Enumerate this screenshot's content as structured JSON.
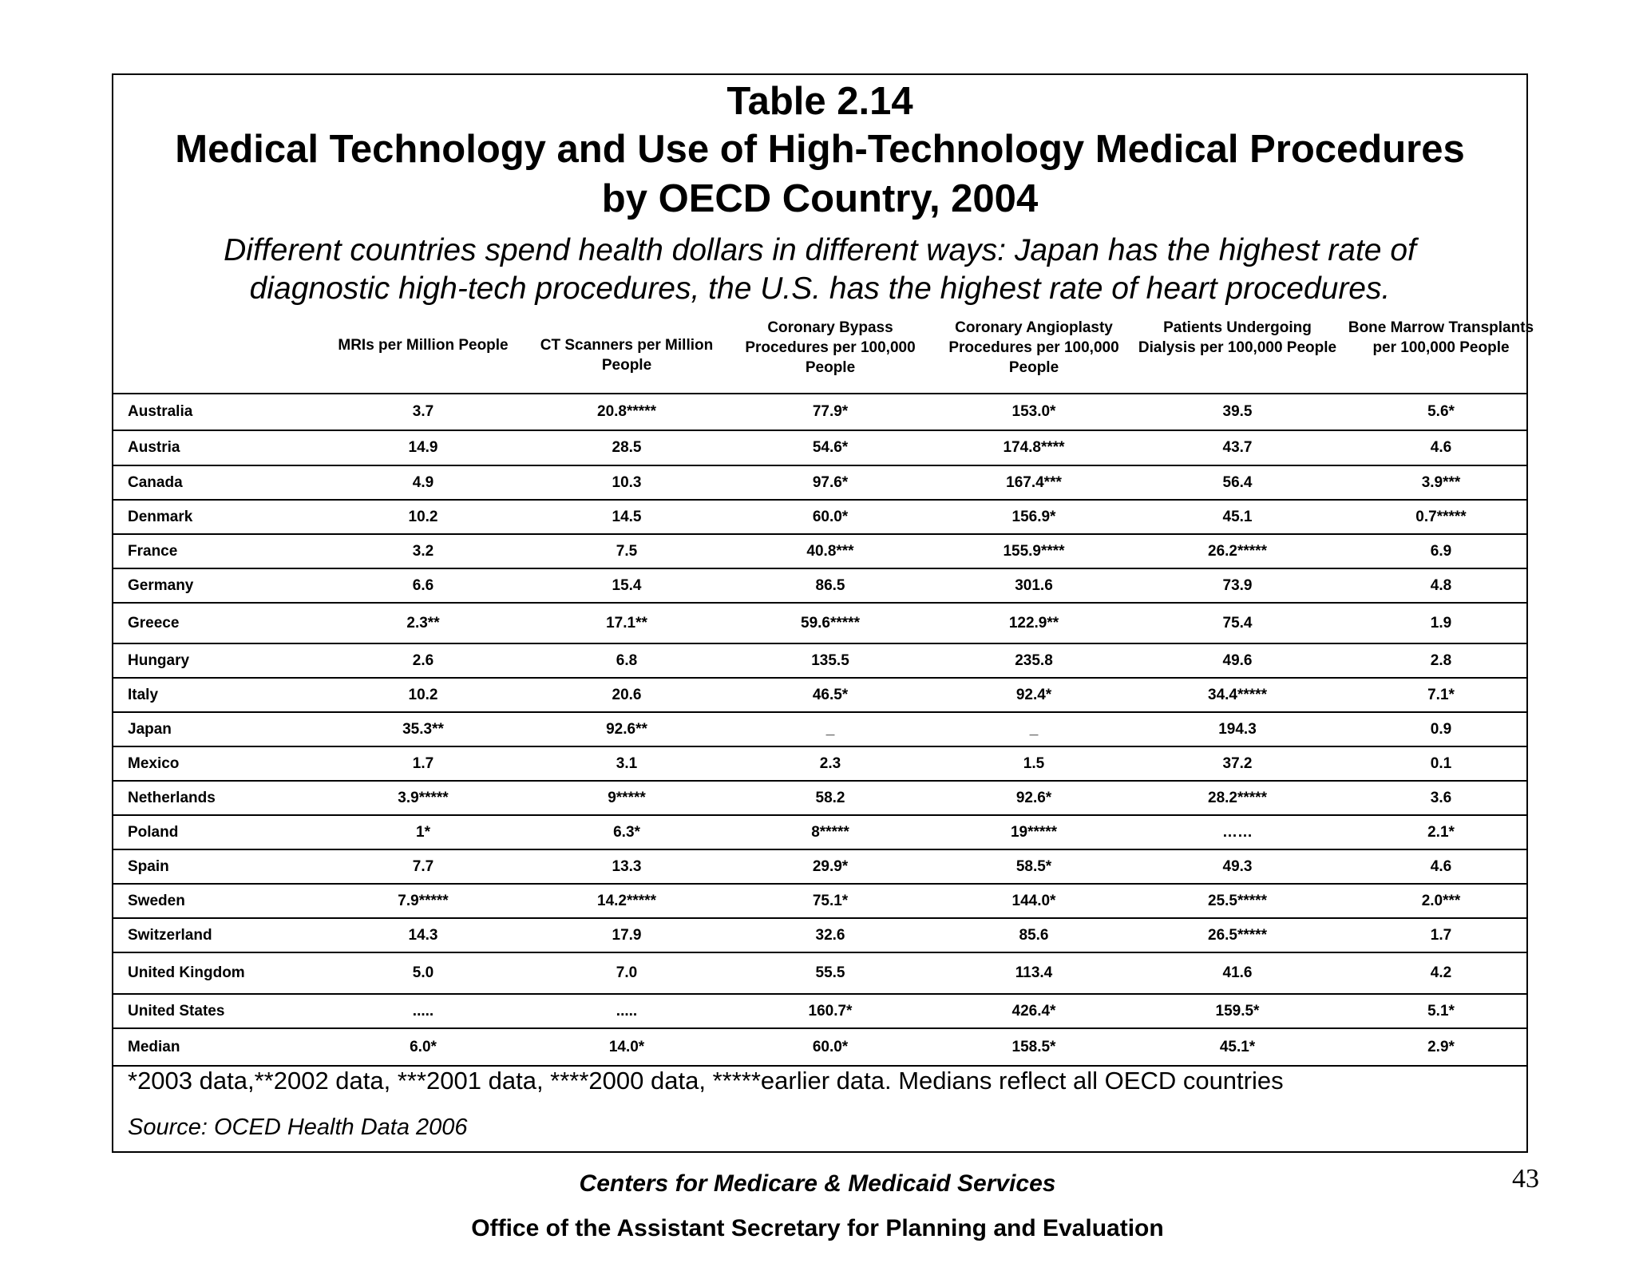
{
  "header": {
    "table_number": "Table 2.14",
    "title_line1": "Medical Technology and Use of High-Technology Medical Procedures",
    "title_line2": "by OECD Country, 2004",
    "subtitle": "Different countries spend health dollars in different ways: Japan has the highest rate of diagnostic high-tech procedures, the U.S. has the highest rate of heart procedures."
  },
  "columns": [
    "MRIs per Million People",
    "CT Scanners per Million People",
    "Coronary Bypass Procedures per 100,000 People",
    "Coronary Angioplasty Procedures per 100,000 People",
    "Patients Undergoing Dialysis per 100,000 People",
    "Bone Marrow Transplants per 100,000 People"
  ],
  "rows": [
    {
      "country": "Australia",
      "values": [
        "3.7",
        "20.8*****",
        "77.9*",
        "153.0*",
        "39.5",
        "5.6*"
      ]
    },
    {
      "country": "Austria",
      "values": [
        "14.9",
        "28.5",
        "54.6*",
        "174.8****",
        "43.7",
        "4.6"
      ]
    },
    {
      "country": "Canada",
      "values": [
        "4.9",
        "10.3",
        "97.6*",
        "167.4***",
        "56.4",
        "3.9***"
      ]
    },
    {
      "country": "Denmark",
      "values": [
        "10.2",
        "14.5",
        "60.0*",
        "156.9*",
        "45.1",
        "0.7*****"
      ]
    },
    {
      "country": "France",
      "values": [
        "3.2",
        "7.5",
        "40.8***",
        "155.9****",
        "26.2*****",
        "6.9"
      ]
    },
    {
      "country": "Germany",
      "values": [
        "6.6",
        "15.4",
        "86.5",
        "301.6",
        "73.9",
        "4.8"
      ]
    },
    {
      "country": "Greece",
      "values": [
        "2.3**",
        "17.1**",
        "59.6*****",
        "122.9**",
        "75.4",
        "1.9"
      ]
    },
    {
      "country": "Hungary",
      "values": [
        "2.6",
        "6.8",
        "135.5",
        "235.8",
        "49.6",
        "2.8"
      ]
    },
    {
      "country": "Italy",
      "values": [
        "10.2",
        "20.6",
        "46.5*",
        "92.4*",
        "34.4*****",
        "7.1*"
      ]
    },
    {
      "country": "Japan",
      "values": [
        "35.3**",
        "92.6**",
        "_",
        "_",
        "194.3",
        "0.9"
      ]
    },
    {
      "country": "Mexico",
      "values": [
        "1.7",
        "3.1",
        "2.3",
        "1.5",
        "37.2",
        "0.1"
      ]
    },
    {
      "country": "Netherlands",
      "values": [
        "3.9*****",
        "9*****",
        "58.2",
        "92.6*",
        "28.2*****",
        "3.6"
      ]
    },
    {
      "country": "Poland",
      "values": [
        "1*",
        "6.3*",
        "8*****",
        "19*****",
        "……",
        "2.1*"
      ]
    },
    {
      "country": "Spain",
      "values": [
        "7.7",
        "13.3",
        "29.9*",
        "58.5*",
        "49.3",
        "4.6"
      ]
    },
    {
      "country": "Sweden",
      "values": [
        "7.9*****",
        "14.2*****",
        "75.1*",
        "144.0*",
        "25.5*****",
        "2.0***"
      ]
    },
    {
      "country": "Switzerland",
      "values": [
        "14.3",
        "17.9",
        "32.6",
        "85.6",
        "26.5*****",
        "1.7"
      ]
    },
    {
      "country": "United Kingdom",
      "values": [
        "5.0",
        "7.0",
        "55.5",
        "113.4",
        "41.6",
        "4.2"
      ]
    },
    {
      "country": "United States",
      "values": [
        ".....",
        ".....",
        "160.7*",
        "426.4*",
        "159.5*",
        "5.1*"
      ]
    },
    {
      "country": "Median",
      "values": [
        "6.0*",
        "14.0*",
        "60.0*",
        "158.5*",
        "45.1*",
        "2.9*"
      ]
    }
  ],
  "footnote": "*2003 data,**2002 data, ***2001 data, ****2000 data, *****earlier data.  Medians reflect all OECD countries",
  "source": "Source: OCED Health Data 2006",
  "footer": {
    "line1": "Centers for Medicare & Medicaid Services",
    "line2": "Office of the Assistant Secretary for Planning and Evaluation",
    "page_number": "43"
  }
}
